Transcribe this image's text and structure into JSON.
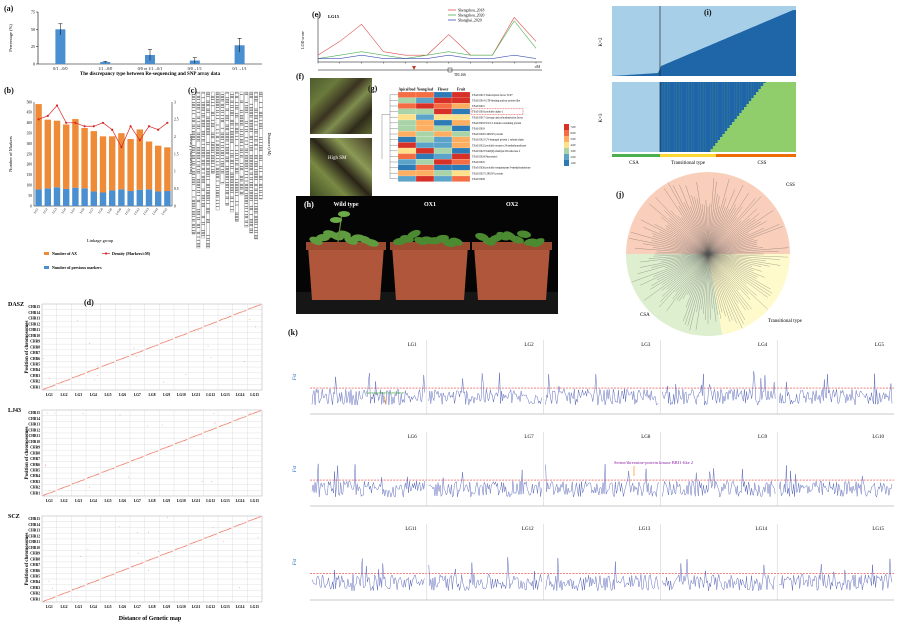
{
  "panels": {
    "a": {
      "label": "(a)",
      "xlabel": "The discrepancy type between Re-sequencing and SNP array data",
      "ylabel": "Percentage (%)",
      "yticks": [
        "0",
        "25",
        "50",
        "75"
      ],
      "chart_data": {
        "type": "bar",
        "categories": [
          "0/1→0/0",
          "1/1→0/0",
          "0/0 or 1/1→0/1",
          "0/0→1/1",
          "0/1→1/1"
        ],
        "values": [
          50,
          3,
          13,
          5,
          27
        ],
        "errors": [
          8,
          1,
          8,
          4,
          10
        ],
        "ylim": [
          0,
          75
        ]
      }
    },
    "b": {
      "label": "(b)",
      "xlabel": "Linkage group",
      "ylabel_left": "Number of Markers",
      "ylabel_right": "Density (Markers/cM)",
      "yticks_left": [
        "0",
        "50",
        "100",
        "150",
        "200",
        "250",
        "300",
        "350",
        "400",
        "450",
        "500"
      ],
      "yticks_right": [
        "0",
        "0.5",
        "1",
        "1.5",
        "2",
        "2.5",
        "3"
      ],
      "legend": [
        "Number of AX",
        "Density (Markers/cM)",
        "Number of previous markers"
      ],
      "chart_data": {
        "type": "bar",
        "categories": [
          "LG1",
          "LG2",
          "LG3",
          "LG4",
          "LG5",
          "LG6",
          "LG7",
          "LG8",
          "LG9",
          "LG10",
          "LG11",
          "LG12",
          "LG13",
          "LG14",
          "LG15"
        ],
        "series": [
          {
            "name": "Number of previous markers",
            "values": [
              80,
              85,
              90,
              82,
              88,
              85,
              70,
              65,
              75,
              80,
              72,
              78,
              80,
              70,
              72
            ]
          },
          {
            "name": "Number of AX",
            "values": [
              410,
              330,
              320,
              310,
              330,
              290,
              290,
              270,
              260,
              270,
              250,
              290,
              230,
              220,
              210
            ]
          },
          {
            "name": "Density (Markers/cM)",
            "values": [
              2.5,
              2.6,
              2.9,
              2.4,
              2.4,
              2.3,
              2.3,
              2.4,
              2.2,
              1.7,
              2.3,
              1.9,
              2.3,
              2.2,
              2.4
            ]
          }
        ],
        "ylim": [
          0,
          500
        ]
      }
    },
    "c": {
      "label": "(c)",
      "ylabel": "Distance (cM)"
    },
    "d": {
      "label": "(d)",
      "populations": [
        "DASZ",
        "LJ43",
        "SCZ"
      ],
      "chromosomes": [
        "CHR15",
        "CHR14",
        "CHR13",
        "CHR12",
        "CHR11",
        "CHR10",
        "CHR9",
        "CHR8",
        "CHR7",
        "CHR6",
        "CHR5",
        "CHR4",
        "CHR3",
        "CHR2",
        "CHR1"
      ],
      "lgs": [
        "LG1",
        "LG2",
        "LG3",
        "LG4",
        "LG5",
        "LG6",
        "LG7",
        "LG8",
        "LG9",
        "LG10",
        "LG11",
        "LG12",
        "LG13",
        "LG14",
        "LG15"
      ],
      "ylabel": "Position of chromosomes",
      "xlabel": "Distance of Genetic map"
    },
    "e": {
      "label": "(e)",
      "lg": "LG15",
      "ylabel": "LOD score",
      "xunit": "cM",
      "legend": [
        "Shengzhou_2018",
        "Shengzhou_2020",
        "Shanghai_2020"
      ],
      "legend_colors": [
        "#d9534f",
        "#4caf50",
        "#3f51b5"
      ],
      "gene_label": "TEL166",
      "chart_data": {
        "type": "line",
        "x": [
          0,
          20,
          40,
          60,
          80,
          100,
          120,
          140,
          160,
          180,
          200
        ],
        "series": [
          {
            "name": "Shengzhou_2018",
            "values": [
              2,
              6,
              11,
              3,
              2,
              2,
              8,
              2,
              2,
              13,
              6
            ]
          },
          {
            "name": "Shengzhou_2020",
            "values": [
              1,
              2,
              3,
              2,
              1,
              2,
              3,
              2,
              2,
              12,
              4
            ]
          },
          {
            "name": "Shanghai_2020",
            "values": [
              1,
              1,
              2,
              1,
              1,
              1,
              2,
              1,
              1,
              2,
              1
            ]
          }
        ]
      }
    },
    "f": {
      "label": "(f)",
      "photo_labels": [
        "",
        "High SM"
      ]
    },
    "g": {
      "label": "(g)",
      "columns": [
        "Apical bud",
        "Young leaf",
        "Flower",
        "Fruit"
      ],
      "rows": [
        "TEA015013 Transcription factor TCP7",
        "TEA015014 GTP-binding nuclear protein like",
        "TEA015015",
        "TEA015016 probable alpha-1",
        "TEA015017 cleavage and polyadenylation factor",
        "TEA015018 WLS-5 domain containing protein",
        "TEA015019",
        "TEA015020 LIPOXY protein",
        "TEA015021 UV-damaged protein 1 subunit alpha",
        "TEA015022 probable receptor 24 methyltransferase",
        "TEA015023 NAD(P)-aldehyde III reductase 2",
        "TEA015024 Pinoresinol",
        "TEA015025",
        "TEA015026 probable sesquiterpene 9-methyltransferase",
        "TEA015027 LIPOXY protein",
        "TEA015028"
      ],
      "scale": [
        "7.00",
        "6.00",
        "5.00",
        "4.00",
        "3.00",
        "2.00",
        "1.00"
      ]
    },
    "h": {
      "label": "(h)",
      "labels": [
        "Wild type",
        "OX1",
        "OX2"
      ]
    },
    "i": {
      "label": "(i)",
      "k_labels": [
        "K=2",
        "K=3"
      ],
      "groups": [
        "CSA",
        "Transitional type",
        "CSS"
      ]
    },
    "j": {
      "label": "(j)",
      "groups": [
        "CSS",
        "CSA",
        "Transitional type"
      ]
    },
    "k": {
      "label": "(k)",
      "ylabel": "Fst",
      "lgs": [
        "LG1",
        "LG2",
        "LG3",
        "LG4",
        "LG5",
        "LG6",
        "LG7",
        "LG8",
        "LG9",
        "LG10",
        "LG11",
        "LG12",
        "LG13",
        "LG14",
        "LG15"
      ],
      "annotations": [
        "Isovigoenyl synthase",
        "Serine/threonine-protein kinase BRI1-like 2"
      ]
    }
  }
}
